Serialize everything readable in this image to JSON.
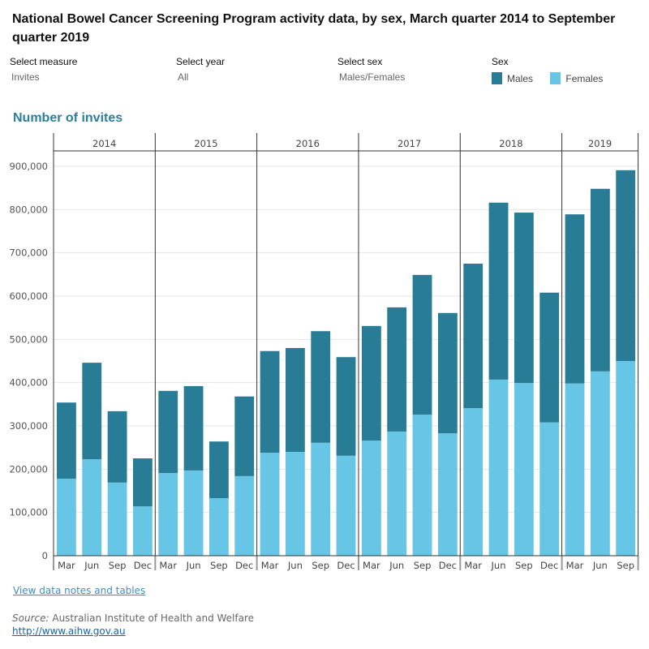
{
  "title": "National Bowel Cancer Screening Program activity data, by sex, March quarter 2014 to September quarter 2019",
  "controls": {
    "measure": {
      "label": "Select measure",
      "value": "Invites"
    },
    "year": {
      "label": "Select year",
      "value": "All"
    },
    "sex": {
      "label": "Select sex",
      "value": "Males/Females"
    }
  },
  "legend": {
    "title": "Sex",
    "items": [
      {
        "label": "Males",
        "color": "#297c96"
      },
      {
        "label": "Females",
        "color": "#67c5e5"
      }
    ]
  },
  "chart_data": {
    "type": "bar",
    "stacked": true,
    "title": "Number of invites",
    "years": [
      "2014",
      "2015",
      "2016",
      "2017",
      "2018",
      "2019"
    ],
    "categories": [
      {
        "year": "2014",
        "quarter": "Mar"
      },
      {
        "year": "2014",
        "quarter": "Jun"
      },
      {
        "year": "2014",
        "quarter": "Sep"
      },
      {
        "year": "2014",
        "quarter": "Dec"
      },
      {
        "year": "2015",
        "quarter": "Mar"
      },
      {
        "year": "2015",
        "quarter": "Jun"
      },
      {
        "year": "2015",
        "quarter": "Sep"
      },
      {
        "year": "2015",
        "quarter": "Dec"
      },
      {
        "year": "2016",
        "quarter": "Mar"
      },
      {
        "year": "2016",
        "quarter": "Jun"
      },
      {
        "year": "2016",
        "quarter": "Sep"
      },
      {
        "year": "2016",
        "quarter": "Dec"
      },
      {
        "year": "2017",
        "quarter": "Mar"
      },
      {
        "year": "2017",
        "quarter": "Jun"
      },
      {
        "year": "2017",
        "quarter": "Sep"
      },
      {
        "year": "2017",
        "quarter": "Dec"
      },
      {
        "year": "2018",
        "quarter": "Mar"
      },
      {
        "year": "2018",
        "quarter": "Jun"
      },
      {
        "year": "2018",
        "quarter": "Sep"
      },
      {
        "year": "2018",
        "quarter": "Dec"
      },
      {
        "year": "2019",
        "quarter": "Mar"
      },
      {
        "year": "2019",
        "quarter": "Jun"
      },
      {
        "year": "2019",
        "quarter": "Sep"
      }
    ],
    "series": [
      {
        "name": "Females",
        "color": "#67c5e5",
        "values": [
          178000,
          223000,
          169000,
          114000,
          191000,
          197000,
          133000,
          184000,
          238000,
          240000,
          261000,
          231000,
          266000,
          287000,
          326000,
          283000,
          341000,
          407000,
          399000,
          308000,
          398000,
          426000,
          450000
        ]
      },
      {
        "name": "Males",
        "color": "#297c96",
        "values": [
          176000,
          223000,
          165000,
          111000,
          190000,
          195000,
          131000,
          184000,
          235000,
          240000,
          258000,
          228000,
          265000,
          287000,
          323000,
          278000,
          334000,
          409000,
          394000,
          300000,
          391000,
          422000,
          441000
        ]
      }
    ],
    "ylim": [
      0,
      900000
    ],
    "yticks": [
      "0",
      "100,000",
      "200,000",
      "300,000",
      "400,000",
      "500,000",
      "600,000",
      "700,000",
      "800,000",
      "900,000"
    ],
    "grid": true,
    "legend_position": "top-right"
  },
  "footer": {
    "link": "View data notes and tables",
    "source_label": "Source:",
    "source_text": "Australian Institute of Health and Welfare",
    "url": "http://www.aihw.gov.au"
  }
}
